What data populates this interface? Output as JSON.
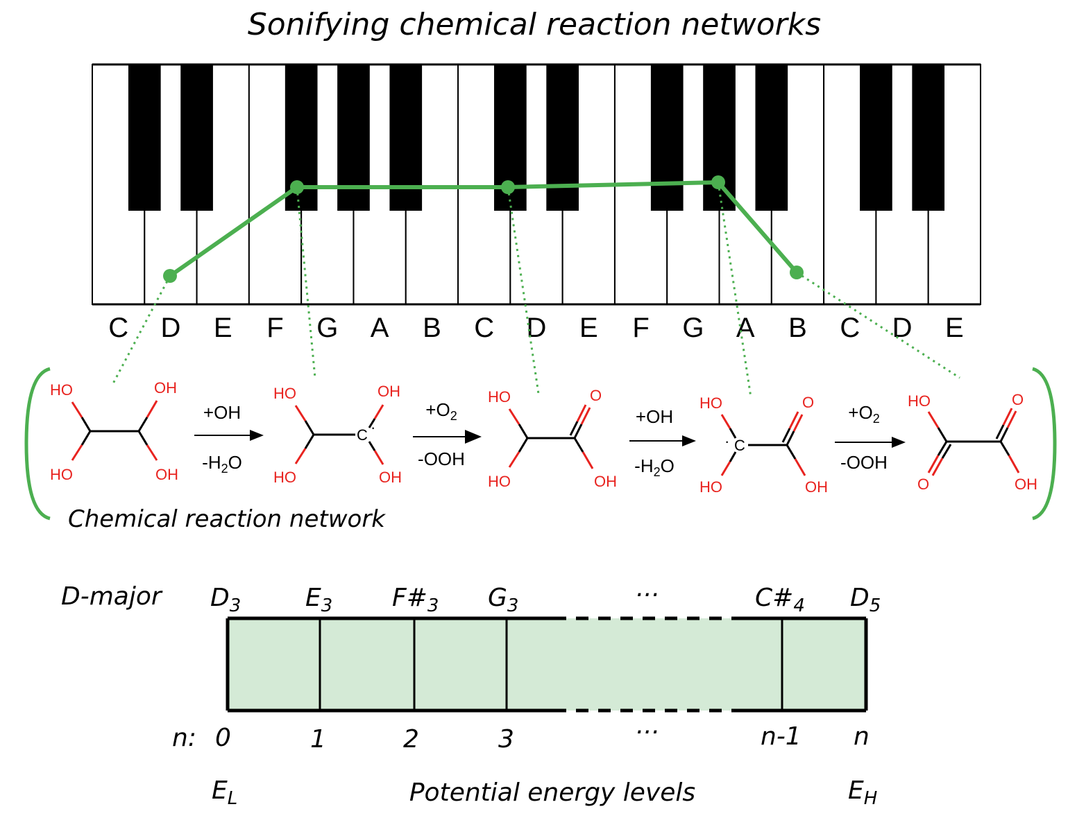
{
  "title": "Sonifying chemical reaction networks",
  "keyboard": {
    "note_labels": [
      "C",
      "D",
      "E",
      "F",
      "G",
      "A",
      "B",
      "C",
      "D",
      "E",
      "F",
      "G",
      "A",
      "B",
      "C",
      "D",
      "E"
    ],
    "melody_line_color": "#4caf50"
  },
  "network": {
    "label": "Chemical reaction network",
    "steps": [
      {
        "above": "+OH",
        "below_main": "-H",
        "below_sub": "2",
        "below_tail": "O"
      },
      {
        "above_main": "+O",
        "above_sub": "2",
        "below": "-OOH"
      },
      {
        "above": "+OH",
        "below_main": "-H",
        "below_sub": "2",
        "below_tail": "O"
      },
      {
        "above_main": "+O",
        "above_sub": "2",
        "below": "-OOH"
      }
    ],
    "atoms": {
      "ho": "HO",
      "oh": "OH",
      "o": "O",
      "c": "C"
    },
    "radical_dot": "·"
  },
  "energy": {
    "scale_name": "D-major",
    "notes": [
      {
        "main": "D",
        "sub": "3"
      },
      {
        "main": "E",
        "sub": "3"
      },
      {
        "main": "F#",
        "sub": "3"
      },
      {
        "main": "G",
        "sub": "3"
      },
      {
        "main": "C#",
        "sub": "4"
      },
      {
        "main": "D",
        "sub": "5"
      }
    ],
    "ellipsis": "···",
    "n_prefix": "n:",
    "indices": [
      "0",
      "1",
      "2",
      "3",
      "n-1",
      "n"
    ],
    "e_low_main": "E",
    "e_low_sub": "L",
    "e_high_main": "E",
    "e_high_sub": "H",
    "levels_label": "Potential energy levels",
    "fill_color": "#d4ead6"
  }
}
